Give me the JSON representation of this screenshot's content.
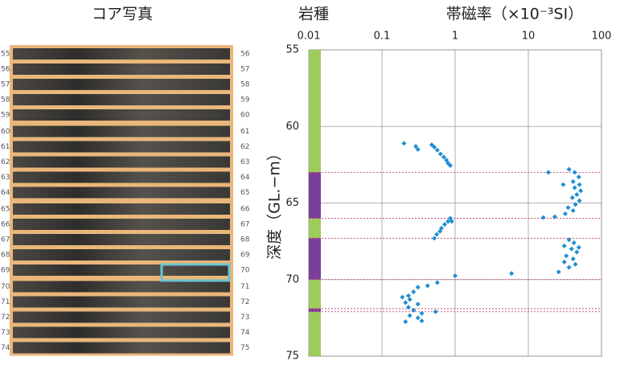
{
  "photo": {
    "title": "コア写真",
    "rows": [
      {
        "from": 55,
        "to": 56
      },
      {
        "from": 56,
        "to": 57
      },
      {
        "from": 57,
        "to": 58
      },
      {
        "from": 58,
        "to": 59
      },
      {
        "from": 59,
        "to": 60
      },
      {
        "from": 60,
        "to": 61
      },
      {
        "from": 61,
        "to": 62
      },
      {
        "from": 62,
        "to": 63
      },
      {
        "from": 63,
        "to": 64
      },
      {
        "from": 64,
        "to": 65
      },
      {
        "from": 65,
        "to": 66
      },
      {
        "from": 66,
        "to": 67
      },
      {
        "from": 67,
        "to": 68
      },
      {
        "from": 68,
        "to": 69
      },
      {
        "from": 69,
        "to": 70
      },
      {
        "from": 70,
        "to": 71
      },
      {
        "from": 71,
        "to": 72
      },
      {
        "from": 72,
        "to": 73
      },
      {
        "from": 73,
        "to": 74
      },
      {
        "from": 74,
        "to": 75
      }
    ]
  },
  "chart_data": {
    "type": "scatter",
    "title": "帯磁率（×10⁻³SI）",
    "lithology_title": "岩種",
    "ylabel": "深度（GL.−m）",
    "xscale": "log",
    "xlim": [
      0.01,
      100
    ],
    "xticks": [
      0.01,
      0.1,
      1,
      10,
      100
    ],
    "ylim": [
      55,
      75
    ],
    "yticks": [
      55,
      60,
      65,
      70,
      75
    ],
    "y_inverted": true,
    "grid": true,
    "color": "#1e8fd2",
    "lithology": [
      {
        "from": 55,
        "to": 63,
        "color": "#9dcb5c"
      },
      {
        "from": 63,
        "to": 66,
        "color": "#7b3f98"
      },
      {
        "from": 66,
        "to": 67.3,
        "color": "#9dcb5c"
      },
      {
        "from": 67.3,
        "to": 70,
        "color": "#7b3f98"
      },
      {
        "from": 70,
        "to": 71.9,
        "color": "#9dcb5c"
      },
      {
        "from": 71.9,
        "to": 72.1,
        "color": "#7b3f98"
      },
      {
        "from": 72.1,
        "to": 75,
        "color": "#9dcb5c"
      }
    ],
    "x": [
      0.2,
      0.29,
      0.31,
      0.48,
      0.52,
      0.57,
      0.63,
      0.7,
      0.76,
      0.8,
      0.86,
      0.86,
      0.8,
      0.72,
      0.65,
      0.62,
      0.56,
      0.52,
      0.9,
      1.0,
      0.57,
      0.31,
      0.27,
      0.23,
      0.19,
      0.24,
      0.21,
      0.31,
      0.23,
      0.27,
      0.35,
      0.24,
      0.31,
      0.21,
      0.54,
      0.35,
      0.42,
      5.9,
      18.8,
      36,
      43,
      49,
      41,
      50,
      43,
      52,
      46,
      40,
      50,
      44,
      35,
      41,
      32,
      23,
      16,
      30,
      36,
      42,
      31,
      39,
      46,
      33,
      41,
      31,
      44,
      36,
      26,
      49
    ],
    "values": [
      61.1,
      61.3,
      61.5,
      61.2,
      61.35,
      61.55,
      61.8,
      62.0,
      62.2,
      62.4,
      62.55,
      66.0,
      66.2,
      66.4,
      66.65,
      66.85,
      67.05,
      67.3,
      66.2,
      69.75,
      70.2,
      70.5,
      70.8,
      71.05,
      71.15,
      71.3,
      71.5,
      71.6,
      71.8,
      72.0,
      72.2,
      72.35,
      72.5,
      72.75,
      72.1,
      72.7,
      70.4,
      69.6,
      63.0,
      62.8,
      63.0,
      63.3,
      63.6,
      63.8,
      64.0,
      64.2,
      64.45,
      64.65,
      64.85,
      65.1,
      65.3,
      65.5,
      65.7,
      65.9,
      65.95,
      63.8,
      67.4,
      67.6,
      67.8,
      68.0,
      68.2,
      68.45,
      68.65,
      68.85,
      69.0,
      69.2,
      69.5,
      67.9
    ]
  }
}
